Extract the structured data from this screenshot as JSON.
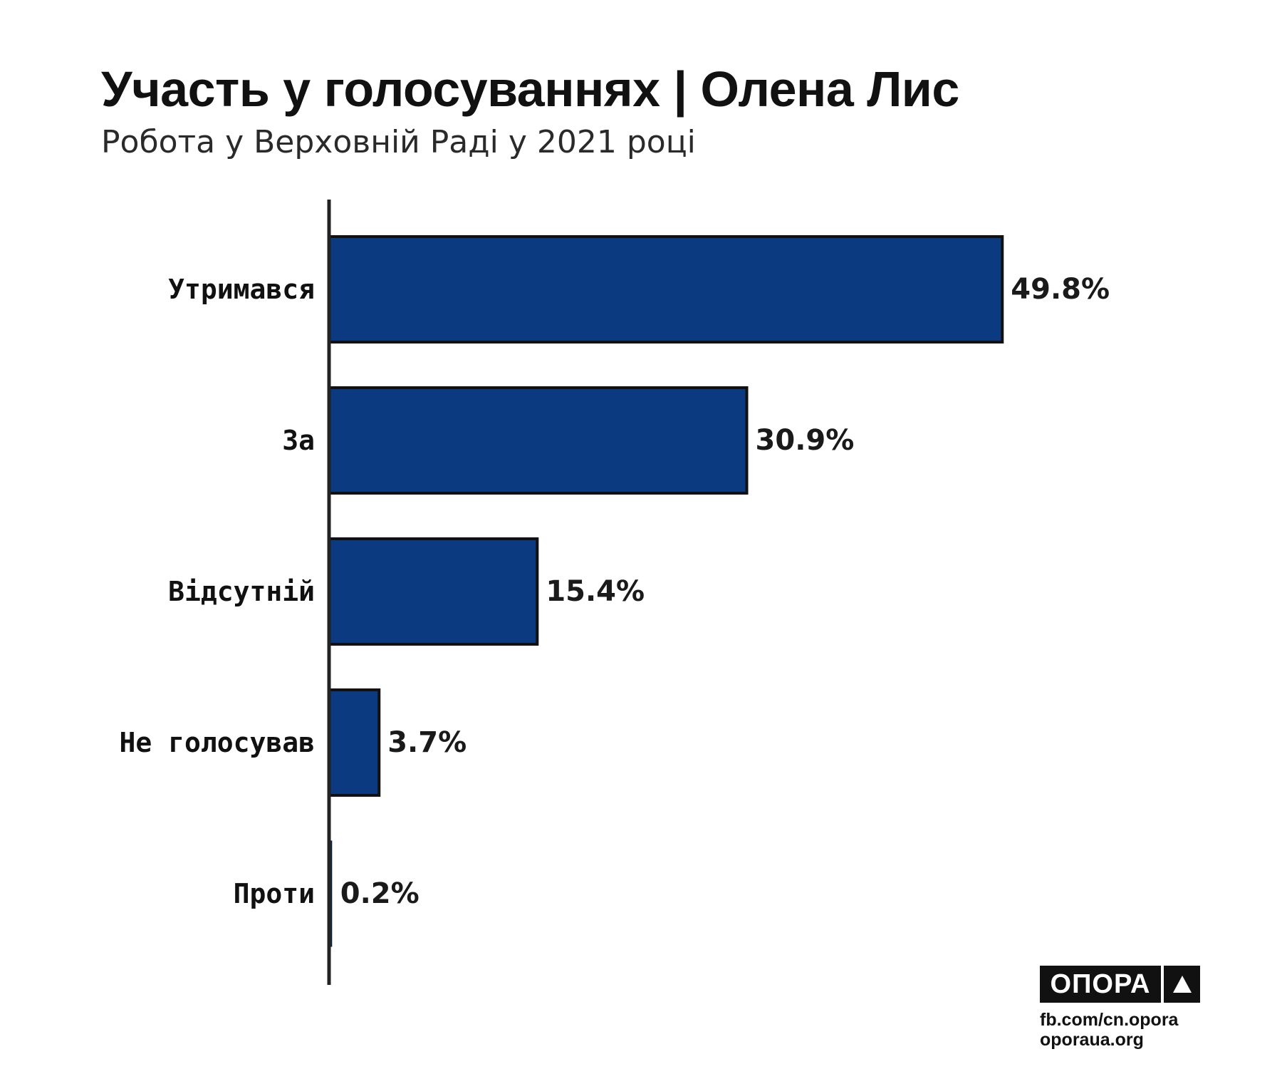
{
  "header": {
    "title": "Участь у голосуваннях | Олена Лис",
    "subtitle": "Робота у Верховній Раді у 2021 році"
  },
  "chart_data": {
    "type": "bar",
    "orientation": "horizontal",
    "categories": [
      "Утримався",
      "За",
      "Відсутній",
      "Не голосував",
      "Проти"
    ],
    "values": [
      49.8,
      30.9,
      15.4,
      3.7,
      0.2
    ],
    "value_labels": [
      "49.8%",
      "30.9%",
      "15.4%",
      "3.7%",
      "0.2%"
    ],
    "xlim": [
      0,
      55
    ],
    "grid": false,
    "bar_color": "#0b3a80",
    "bar_outline_color": "#111111"
  },
  "branding": {
    "logo_text": "ОПОРА",
    "links": [
      "fb.com/cn.opora",
      "oporaua.org"
    ]
  }
}
